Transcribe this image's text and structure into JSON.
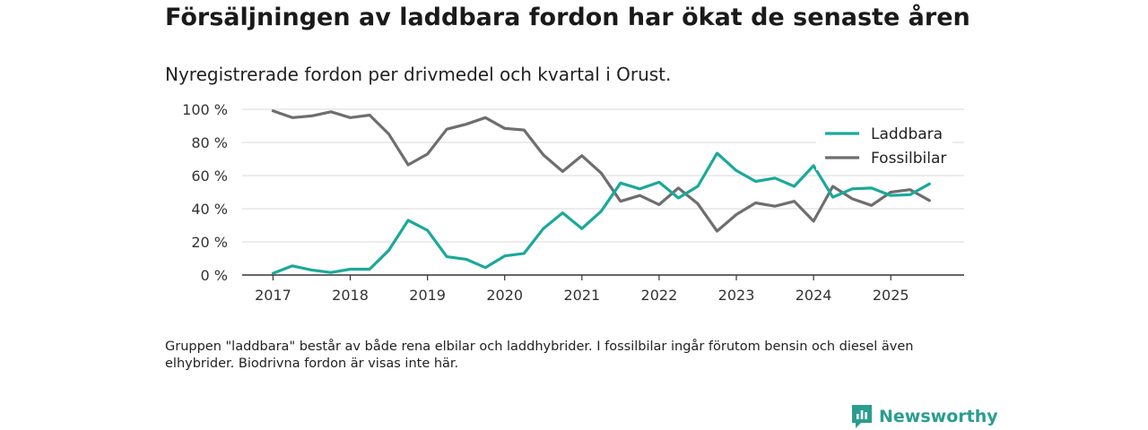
{
  "title": "Försäljningen av laddbara fordon har ökat de senaste åren",
  "subtitle": "Nyregistrerade fordon per drivmedel och kvartal i Orust.",
  "footnote": "Gruppen \"laddbara\" består av både rena elbilar och laddhybrider. I fossilbilar ingår förutom bensin och diesel även elhybrider. Biodrivna fordon är visas inte här.",
  "brand": {
    "name": "Newsworthy",
    "icon": "newsworthy-logo-icon"
  },
  "colors": {
    "laddbara": "#1aa99a",
    "fossilbilar": "#6e6e6e",
    "grid": "#d9d9d9",
    "axis": "#333333"
  },
  "chart_data": {
    "type": "line",
    "title": "Försäljningen av laddbara fordon har ökat de senaste åren",
    "subtitle": "Nyregistrerade fordon per drivmedel och kvartal i Orust.",
    "xlabel": "",
    "ylabel": "",
    "y_tick_values": [
      0,
      20,
      40,
      60,
      80,
      100
    ],
    "y_tick_labels": [
      "0 %",
      "20 %",
      "40 %",
      "60 %",
      "80 %",
      "100 %"
    ],
    "ylim": [
      0,
      100
    ],
    "x_tick_values": [
      2017,
      2018,
      2019,
      2020,
      2021,
      2022,
      2023,
      2024,
      2025
    ],
    "x_tick_labels": [
      "2017",
      "2018",
      "2019",
      "2020",
      "2021",
      "2022",
      "2023",
      "2024",
      "2025"
    ],
    "xlim": [
      2016.6,
      2025.95
    ],
    "x": [
      2017,
      2017.25,
      2017.5,
      2017.75,
      2018,
      2018.25,
      2018.5,
      2018.75,
      2019,
      2019.25,
      2019.5,
      2019.75,
      2020,
      2020.25,
      2020.5,
      2020.75,
      2021,
      2021.25,
      2021.5,
      2021.75,
      2022,
      2022.25,
      2022.5,
      2022.75,
      2023,
      2023.25,
      2023.5,
      2023.75,
      2024,
      2024.25,
      2024.5,
      2024.75,
      2025,
      2025.25,
      2025.5
    ],
    "legend_position": "top-right",
    "series": [
      {
        "name": "Laddbara",
        "values": [
          1,
          5.5,
          3,
          1.5,
          3.5,
          3.5,
          15,
          33,
          27,
          11,
          9.5,
          4.5,
          11.5,
          13,
          28,
          37.5,
          28,
          38.5,
          55.5,
          52,
          56,
          46.5,
          53.5,
          73.5,
          63,
          56.5,
          58.5,
          53.5,
          66,
          47,
          52,
          52.5,
          48,
          48.5,
          55
        ]
      },
      {
        "name": "Fossilbilar",
        "values": [
          99,
          95,
          96,
          98.5,
          95,
          96.5,
          85,
          66.5,
          73,
          88,
          91,
          95,
          88.5,
          87.5,
          72.5,
          62.5,
          72,
          61.5,
          44.5,
          48,
          42.5,
          52.5,
          43,
          26.5,
          36.5,
          43.5,
          41.5,
          44.5,
          32.5,
          53.5,
          46,
          42,
          50,
          51.5,
          45
        ]
      }
    ]
  }
}
